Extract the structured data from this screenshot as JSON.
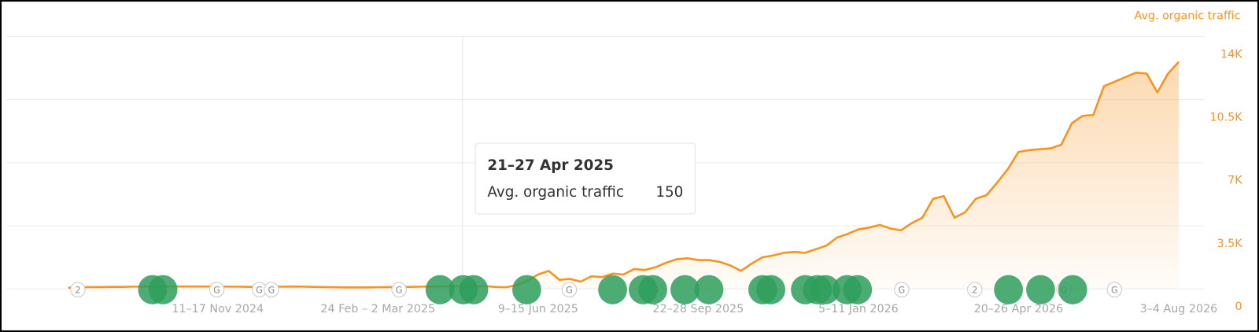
{
  "chart_data": {
    "type": "area",
    "title": "Avg. organic traffic",
    "categories": [
      null,
      null,
      null,
      null,
      null,
      null,
      null,
      null,
      null,
      null,
      null,
      null,
      null,
      null,
      "11–17 Nov 2024",
      null,
      null,
      null,
      null,
      null,
      null,
      null,
      null,
      null,
      null,
      null,
      null,
      null,
      null,
      "24 Feb – 2 Mar 2025",
      null,
      null,
      null,
      null,
      null,
      null,
      null,
      null,
      null,
      null,
      null,
      null,
      null,
      null,
      "9–15 Jun 2025",
      null,
      null,
      null,
      null,
      null,
      null,
      null,
      null,
      null,
      null,
      null,
      null,
      null,
      null,
      "22–28 Sep 2025",
      null,
      null,
      null,
      null,
      null,
      null,
      null,
      null,
      null,
      null,
      null,
      null,
      null,
      null,
      "5–11 Jan 2026",
      null,
      null,
      null,
      null,
      null,
      null,
      null,
      null,
      null,
      null,
      null,
      null,
      null,
      null,
      "20–26 Apr 2026",
      null,
      null,
      null,
      null,
      null,
      null,
      null,
      null,
      null,
      null,
      null,
      null,
      null,
      null,
      "3–4 Aug 2026"
    ],
    "series": [
      {
        "name": "Avg. organic traffic",
        "color": "#f7931e",
        "values": [
          60,
          90,
          100,
          100,
          110,
          110,
          120,
          120,
          120,
          130,
          130,
          130,
          130,
          130,
          130,
          120,
          120,
          110,
          100,
          110,
          120,
          130,
          120,
          110,
          100,
          90,
          80,
          80,
          80,
          90,
          100,
          100,
          110,
          120,
          130,
          140,
          150,
          150,
          140,
          150,
          110,
          90,
          200,
          450,
          800,
          1000,
          500,
          550,
          400,
          700,
          650,
          850,
          800,
          1100,
          1050,
          1200,
          1450,
          1650,
          1700,
          1600,
          1600,
          1500,
          1300,
          1000,
          1400,
          1750,
          1850,
          2000,
          2050,
          2000,
          2200,
          2400,
          2850,
          3050,
          3300,
          3400,
          3550,
          3350,
          3250,
          3650,
          3950,
          5000,
          5150,
          3950,
          4250,
          5000,
          5200,
          5900,
          6650,
          7600,
          7700,
          7750,
          7800,
          8000,
          9200,
          9600,
          9650,
          11250,
          11500,
          11750,
          12000,
          11950,
          10900,
          11950,
          12600
        ]
      }
    ],
    "ylim": [
      0,
      14000
    ],
    "yticks": [
      0,
      {
        "value": 3500,
        "label": "3.5K"
      },
      {
        "value": 7000,
        "label": "7K"
      },
      {
        "value": 10500,
        "label": "10.5K"
      },
      {
        "value": 14000,
        "label": "14K"
      }
    ],
    "grid": true,
    "markers": [
      "2",
      "G",
      "G",
      "G",
      "G",
      "G",
      "G",
      "G",
      "2",
      "G",
      "G"
    ],
    "tooltip": {
      "title": "21–27 Apr 2025",
      "label": "Avg. organic traffic",
      "value": 150
    }
  }
}
